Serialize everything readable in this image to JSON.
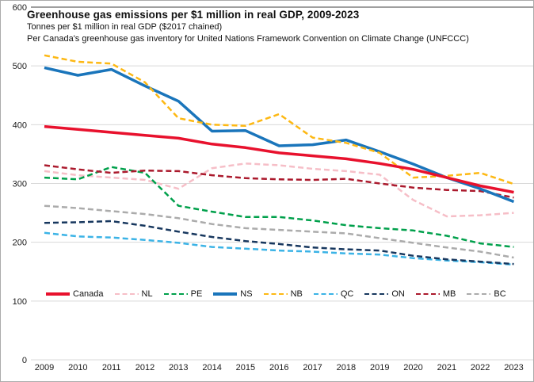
{
  "header": {
    "title": "Greenhouse gas emissions per $1 million in real GDP, 2009-2023",
    "subtitle": "Tonnes per $1 million in real GDP ($2017 chained)",
    "source_note": "Per Canada's greenhouse gas inventory for United Nations Framework Convention on Climate Change (UNFCCC)"
  },
  "chart_data": {
    "type": "line",
    "title": "Greenhouse gas emissions per $1 million in real GDP, 2009-2023",
    "xlabel": "",
    "ylabel": "Tonnes per $1 million in real GDP ($2017 chained)",
    "ylim": [
      0,
      600
    ],
    "y_ticks": [
      0,
      100,
      200,
      300,
      400,
      500,
      600
    ],
    "grid": true,
    "legend_position": "inside-bottom",
    "x": [
      2009,
      2010,
      2011,
      2012,
      2013,
      2014,
      2015,
      2016,
      2017,
      2018,
      2019,
      2020,
      2021,
      2022,
      2023
    ],
    "series": [
      {
        "name": "Canada",
        "color": "#e8112d",
        "style": "solid",
        "width": 3.5,
        "values": [
          397,
          392,
          387,
          382,
          377,
          367,
          361,
          352,
          347,
          342,
          334,
          324,
          310,
          296,
          285
        ]
      },
      {
        "name": "NL",
        "color": "#f6bec7",
        "style": "dashed",
        "width": 2.5,
        "values": [
          321,
          314,
          310,
          306,
          291,
          326,
          334,
          331,
          325,
          321,
          315,
          272,
          244,
          246,
          250
        ]
      },
      {
        "name": "PE",
        "color": "#00a04b",
        "style": "dashed",
        "width": 2.5,
        "values": [
          310,
          307,
          328,
          318,
          262,
          252,
          243,
          243,
          237,
          229,
          224,
          220,
          211,
          198,
          192
        ]
      },
      {
        "name": "NS",
        "color": "#1a75bb",
        "style": "solid",
        "width": 3.5,
        "values": [
          497,
          484,
          494,
          466,
          440,
          389,
          390,
          364,
          366,
          374,
          354,
          333,
          310,
          291,
          269
        ]
      },
      {
        "name": "NB",
        "color": "#fdb813",
        "style": "dashed",
        "width": 2.5,
        "values": [
          518,
          507,
          504,
          472,
          411,
          400,
          398,
          418,
          378,
          369,
          352,
          310,
          313,
          318,
          299
        ]
      },
      {
        "name": "QC",
        "color": "#3bb3e6",
        "style": "dashed",
        "width": 2.5,
        "values": [
          216,
          210,
          208,
          204,
          199,
          192,
          189,
          186,
          184,
          181,
          179,
          173,
          169,
          166,
          162
        ]
      },
      {
        "name": "ON",
        "color": "#17375e",
        "style": "dashed",
        "width": 2.5,
        "values": [
          233,
          234,
          236,
          228,
          218,
          209,
          202,
          197,
          191,
          188,
          186,
          177,
          171,
          167,
          163
        ]
      },
      {
        "name": "MB",
        "color": "#ab1a2d",
        "style": "dashed",
        "width": 2.5,
        "values": [
          331,
          324,
          318,
          322,
          321,
          314,
          309,
          307,
          306,
          308,
          300,
          293,
          289,
          287,
          276
        ]
      },
      {
        "name": "BC",
        "color": "#ababab",
        "style": "dashed",
        "width": 2.5,
        "values": [
          262,
          258,
          253,
          248,
          241,
          231,
          224,
          221,
          218,
          215,
          207,
          199,
          191,
          184,
          174
        ]
      }
    ]
  }
}
